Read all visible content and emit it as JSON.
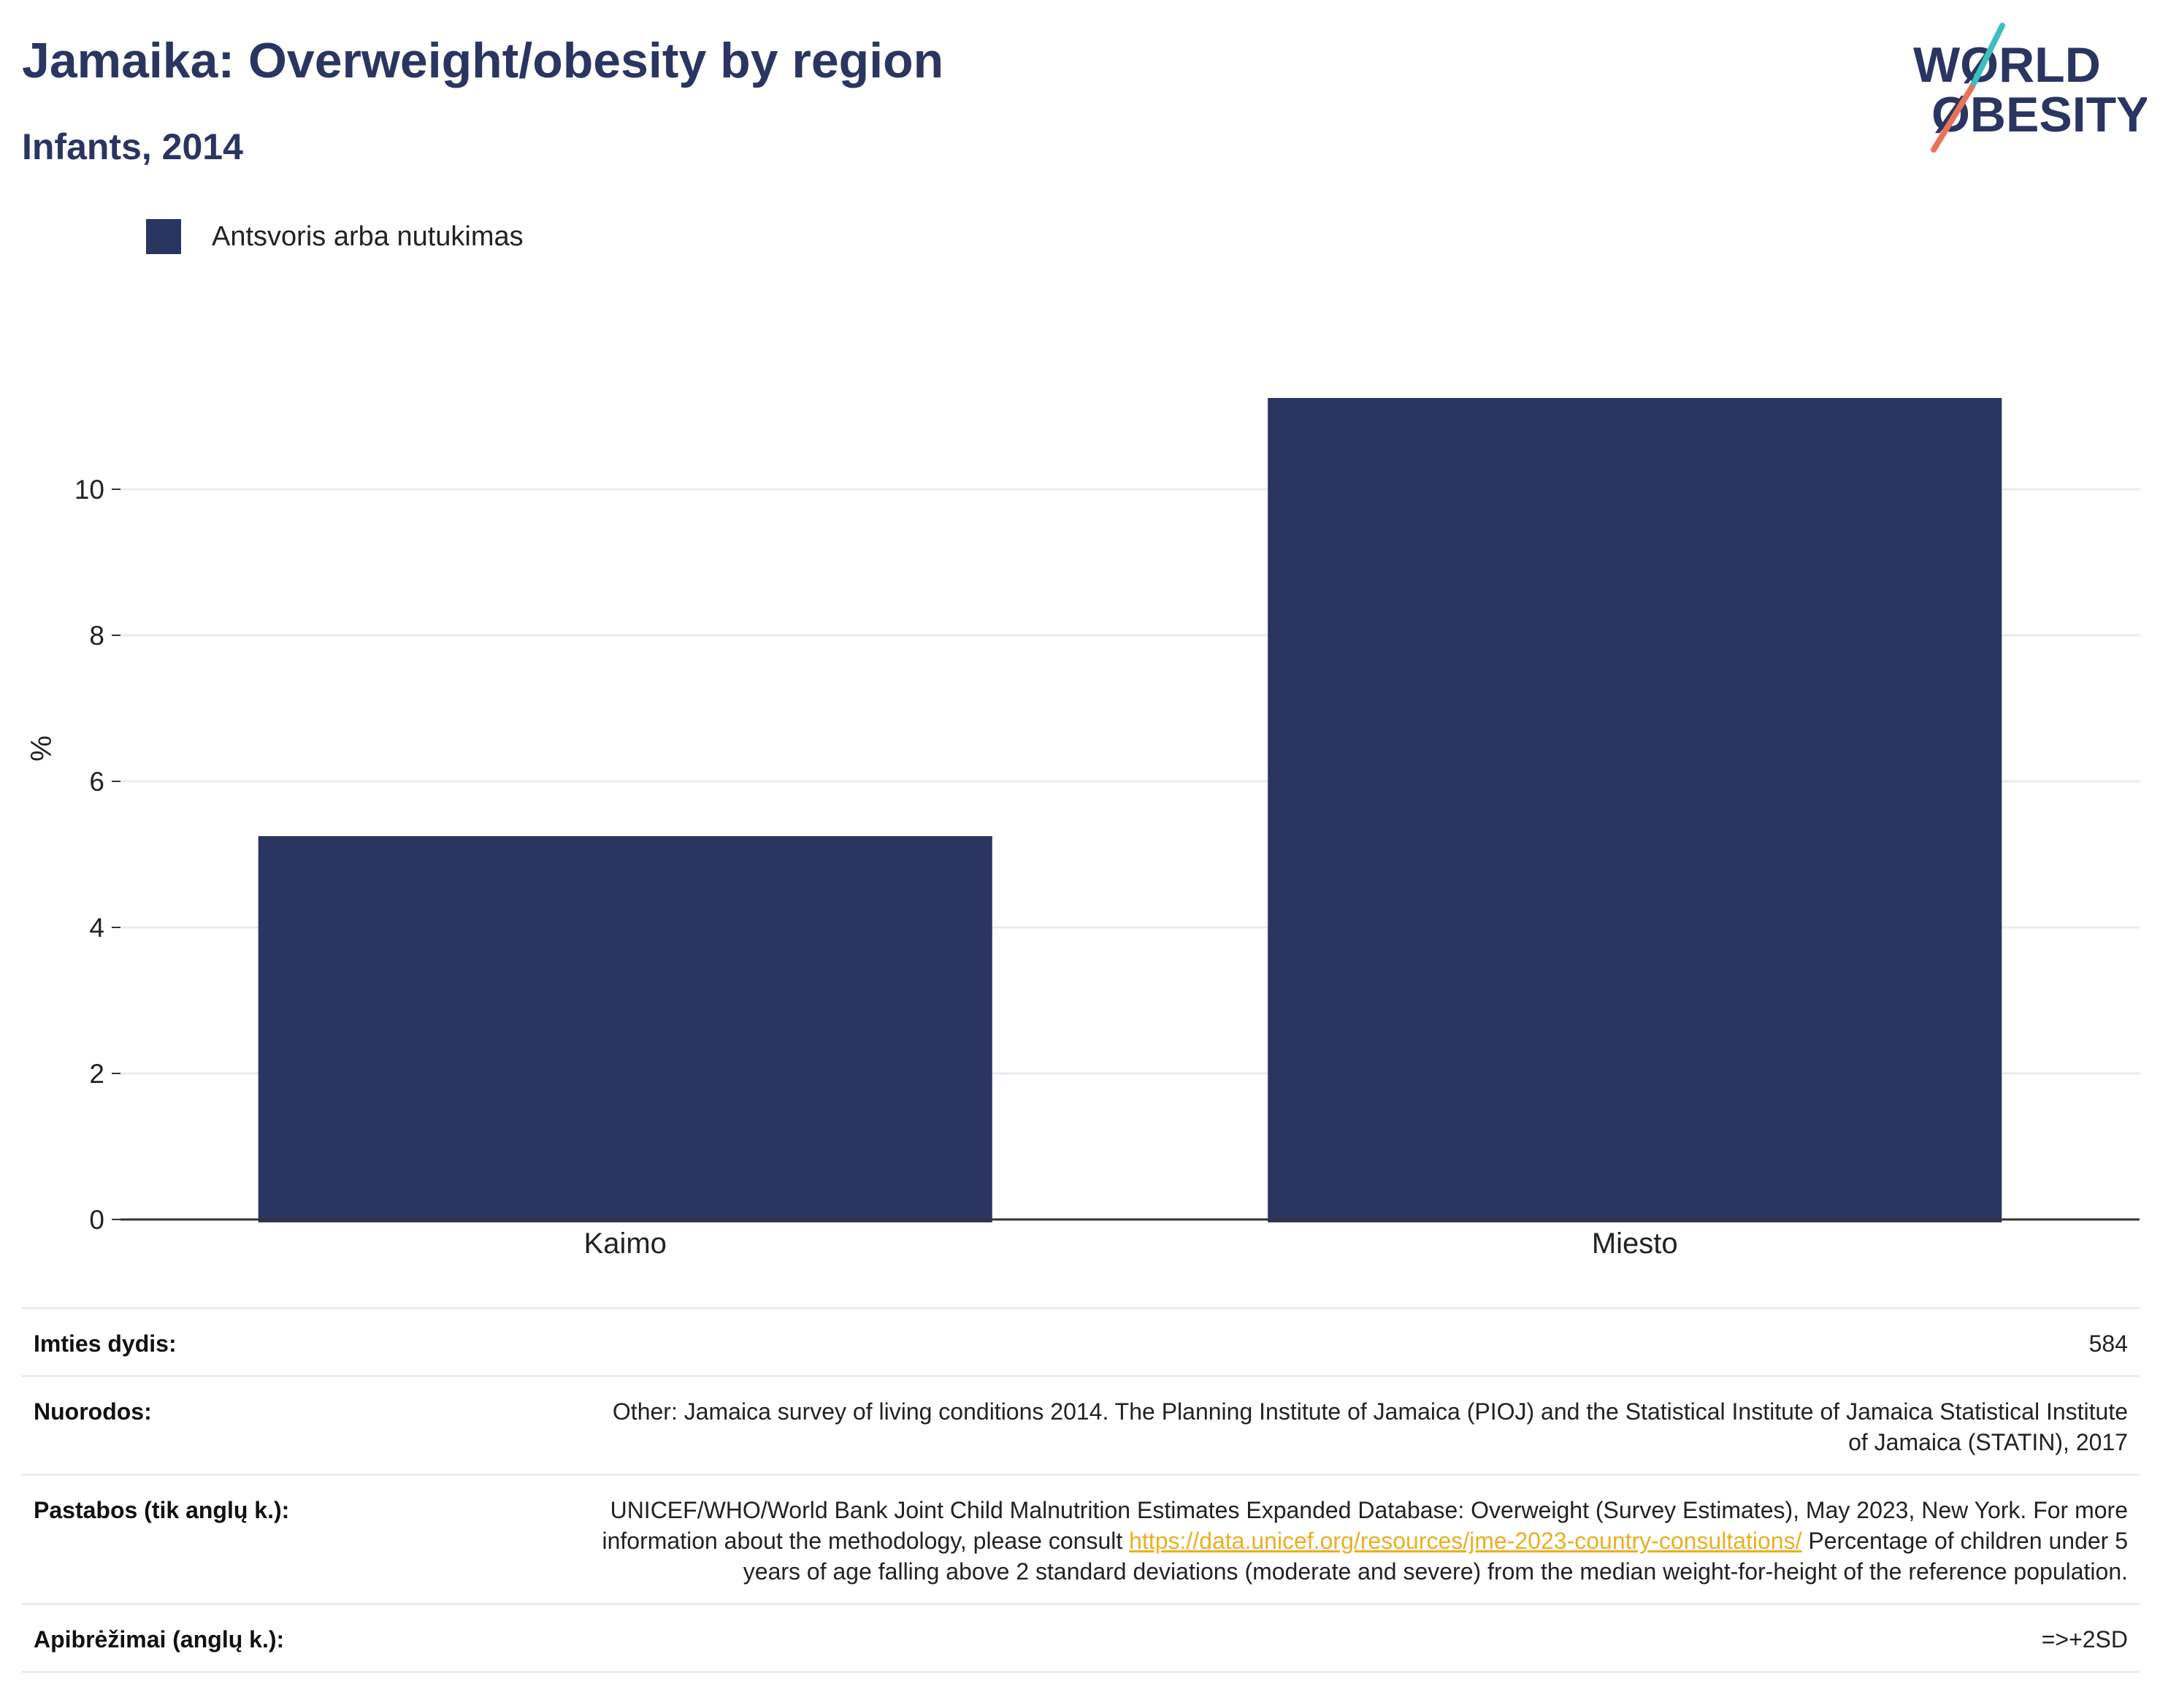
{
  "header": {
    "title": "Jamaika: Overweight/obesity by region",
    "subtitle": "Infants, 2014"
  },
  "logo": {
    "line1": "WØRLD",
    "line2": "ØBESITY",
    "colors": {
      "text": "#2b3561",
      "slash_top": "#3bbfc1",
      "slash_bottom": "#e8735a"
    }
  },
  "colors": {
    "bar": "#2b3561",
    "grid": "#e6ecf0",
    "axis": "#333333",
    "link": "#e8b022"
  },
  "chart_data": {
    "type": "bar",
    "categories": [
      "Kaimo",
      "Miesto"
    ],
    "series": [
      {
        "name": "Antsvoris arba nutukimas",
        "values": [
          5.25,
          11.25
        ]
      }
    ],
    "title": "Jamaika: Overweight/obesity by region",
    "subtitle": "Infants, 2014",
    "xlabel": "",
    "ylabel": "%",
    "ylim": [
      0,
      12.5
    ],
    "yticks": [
      0,
      2,
      4,
      6,
      8,
      10
    ],
    "grid": true,
    "legend": "top-left"
  },
  "info": {
    "sample_size_label": "Imties dydis:",
    "sample_size_value": "584",
    "references_label": "Nuorodos:",
    "references_value": "Other: Jamaica survey of living conditions 2014. The Planning Institute of Jamaica (PIOJ) and the Statistical Institute of Jamaica Statistical Institute of Jamaica (STATIN), 2017",
    "notes_label": "Pastabos (tik anglų k.):",
    "notes_text_1": "UNICEF/WHO/World Bank Joint Child Malnutrition Estimates Expanded Database: Overweight (Survey Estimates), May 2023, New York. For more information about the methodology, please consult ",
    "notes_link": "https://data.unicef.org/resources/jme-2023-country-consultations/",
    "notes_text_2": " Percentage of children under 5 years of age falling above 2 standard deviations (moderate and severe) from the median weight-for-height of the reference population.",
    "definitions_label": "Apibrėžimai (anglų k.):",
    "definitions_value": "=>+2SD"
  }
}
